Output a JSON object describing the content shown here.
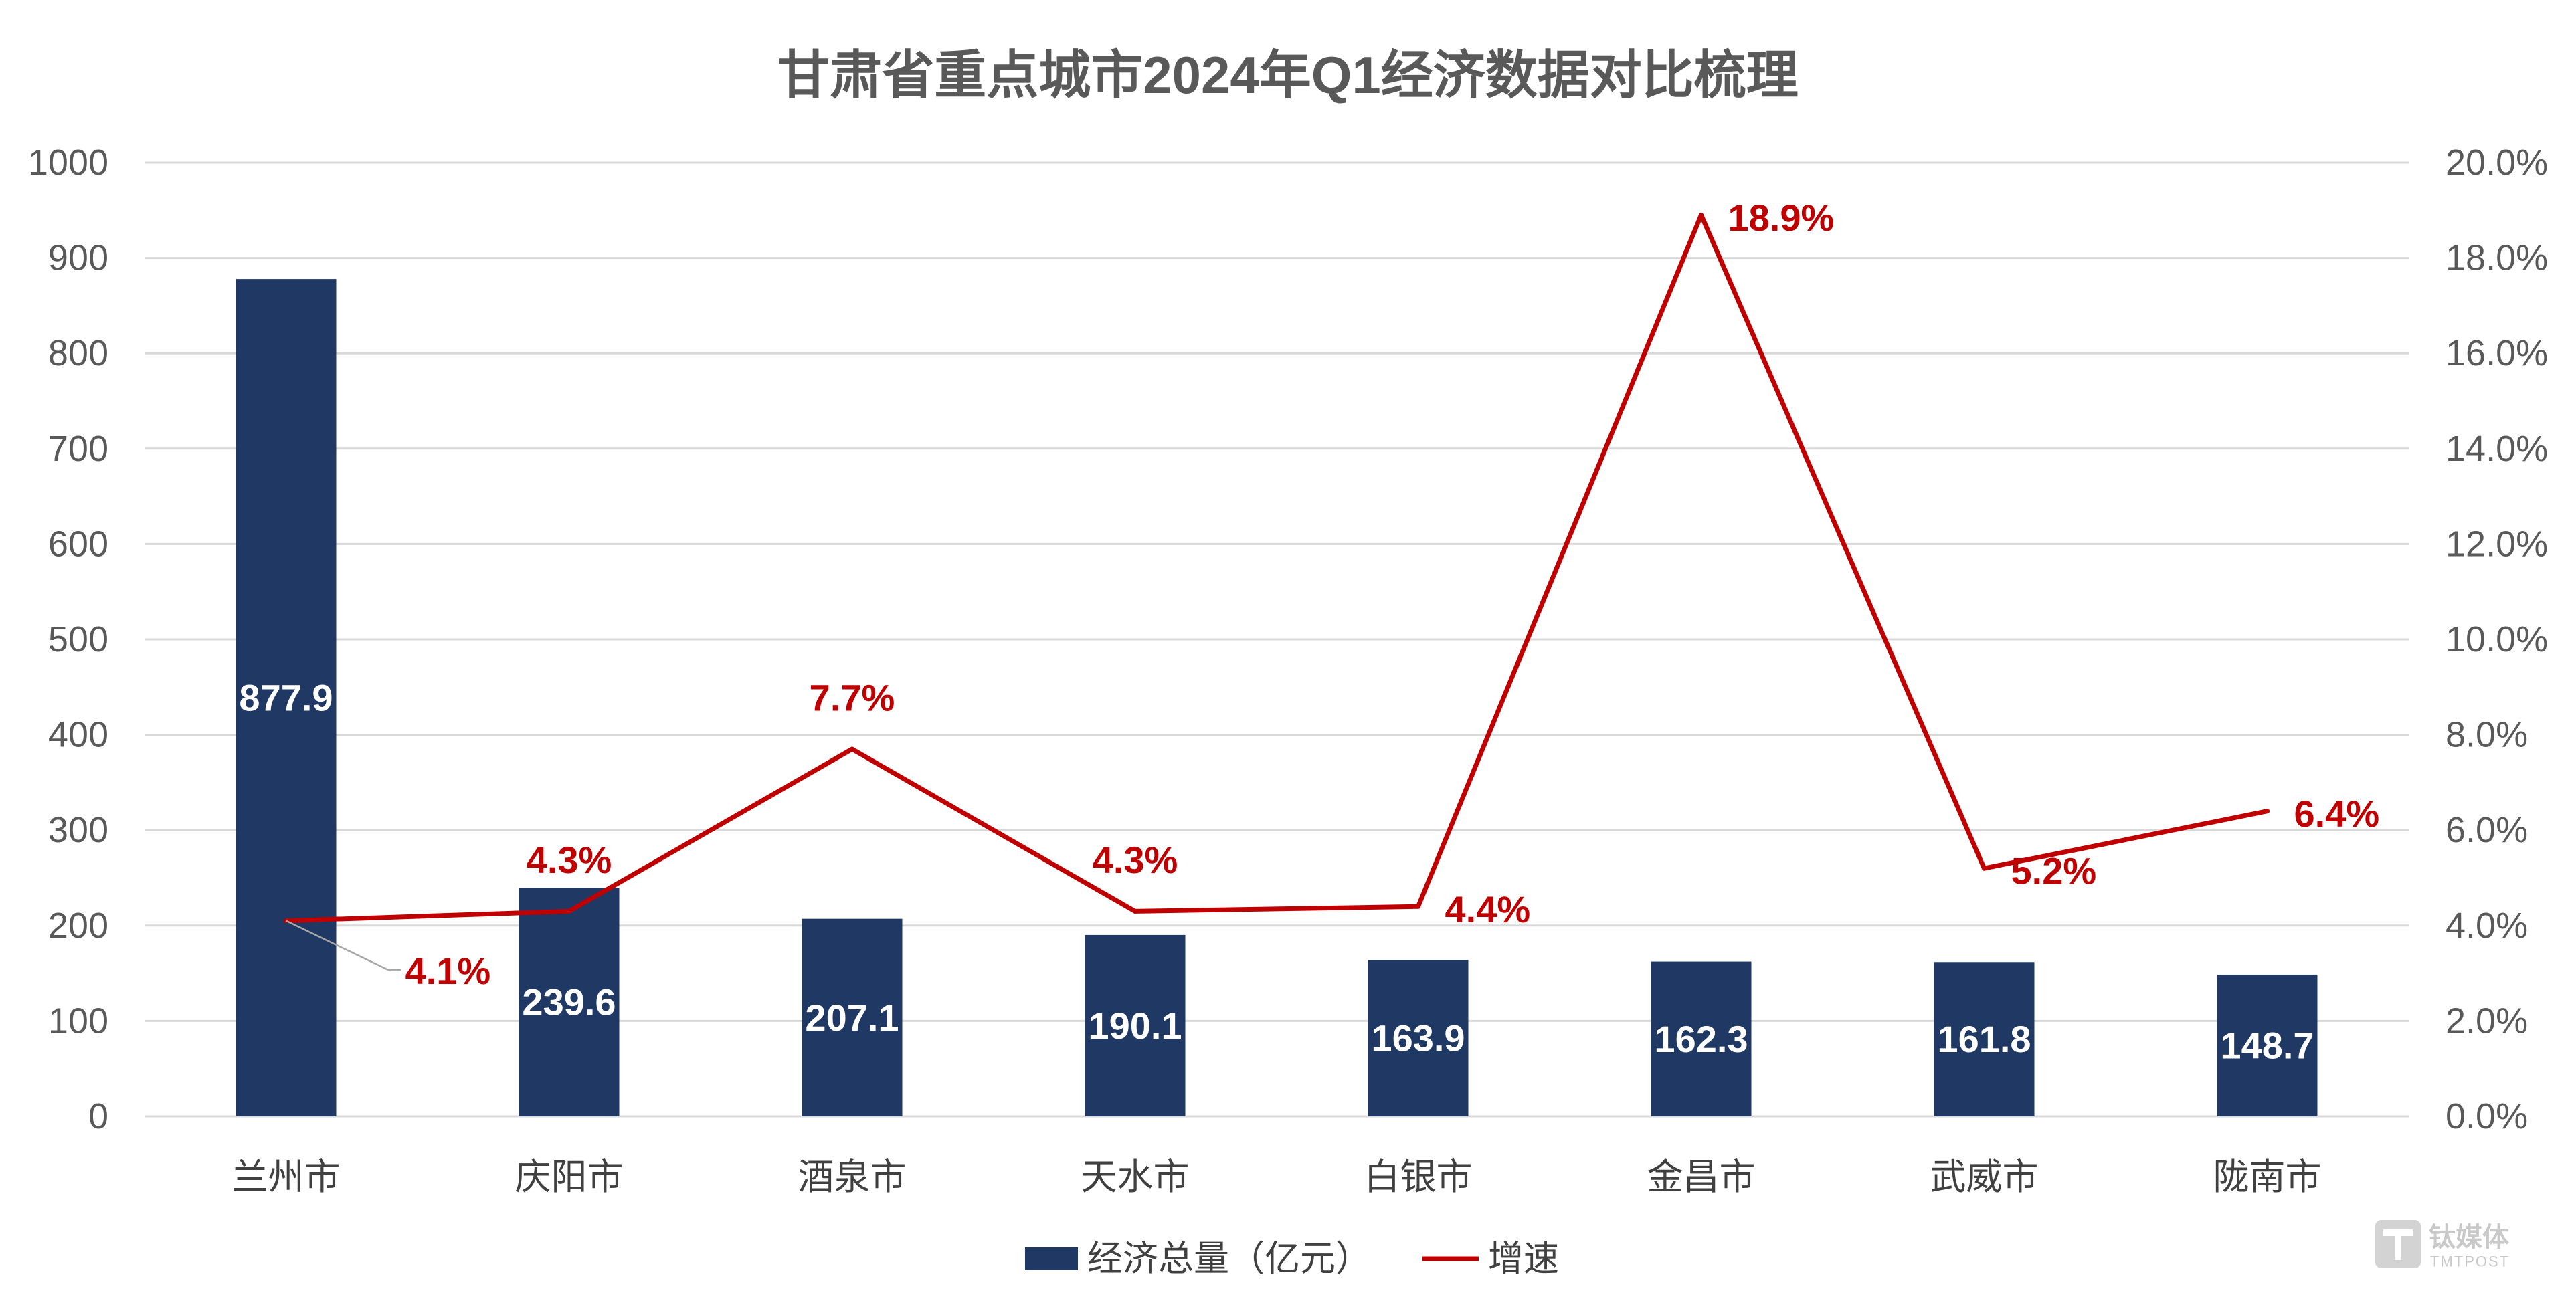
{
  "chart_data": {
    "type": "bar",
    "title": "甘肃省重点城市2024年Q1经济数据对比梳理",
    "categories": [
      "兰州市",
      "庆阳市",
      "酒泉市",
      "天水市",
      "白银市",
      "金昌市",
      "武威市",
      "陇南市"
    ],
    "series": [
      {
        "name": "经济总量（亿元）",
        "type": "bar",
        "values": [
          877.9,
          239.6,
          207.1,
          190.1,
          163.9,
          162.3,
          161.8,
          148.7
        ]
      },
      {
        "name": "增速",
        "type": "line",
        "values": [
          4.1,
          4.3,
          7.7,
          4.3,
          4.4,
          18.9,
          5.2,
          6.4
        ],
        "labels": [
          "4.1%",
          "4.3%",
          "7.7%",
          "4.3%",
          "4.4%",
          "18.9%",
          "5.2%",
          "6.4%"
        ]
      }
    ],
    "ylim": [
      0,
      1000
    ],
    "y2lim": [
      0,
      20
    ],
    "y_ticks": [
      0,
      100,
      200,
      300,
      400,
      500,
      600,
      700,
      800,
      900,
      1000
    ],
    "y2_ticks": [
      "0.0%",
      "2.0%",
      "4.0%",
      "6.0%",
      "8.0%",
      "10.0%",
      "12.0%",
      "14.0%",
      "16.0%",
      "18.0%",
      "20.0%"
    ]
  },
  "colors": {
    "bar": "#1f3864",
    "line": "#c00000",
    "grid": "#d9d9d9",
    "leader": "#a6a6a6"
  },
  "watermark": {
    "brand": "钛媒体",
    "brand_en": "TMTPOST"
  }
}
